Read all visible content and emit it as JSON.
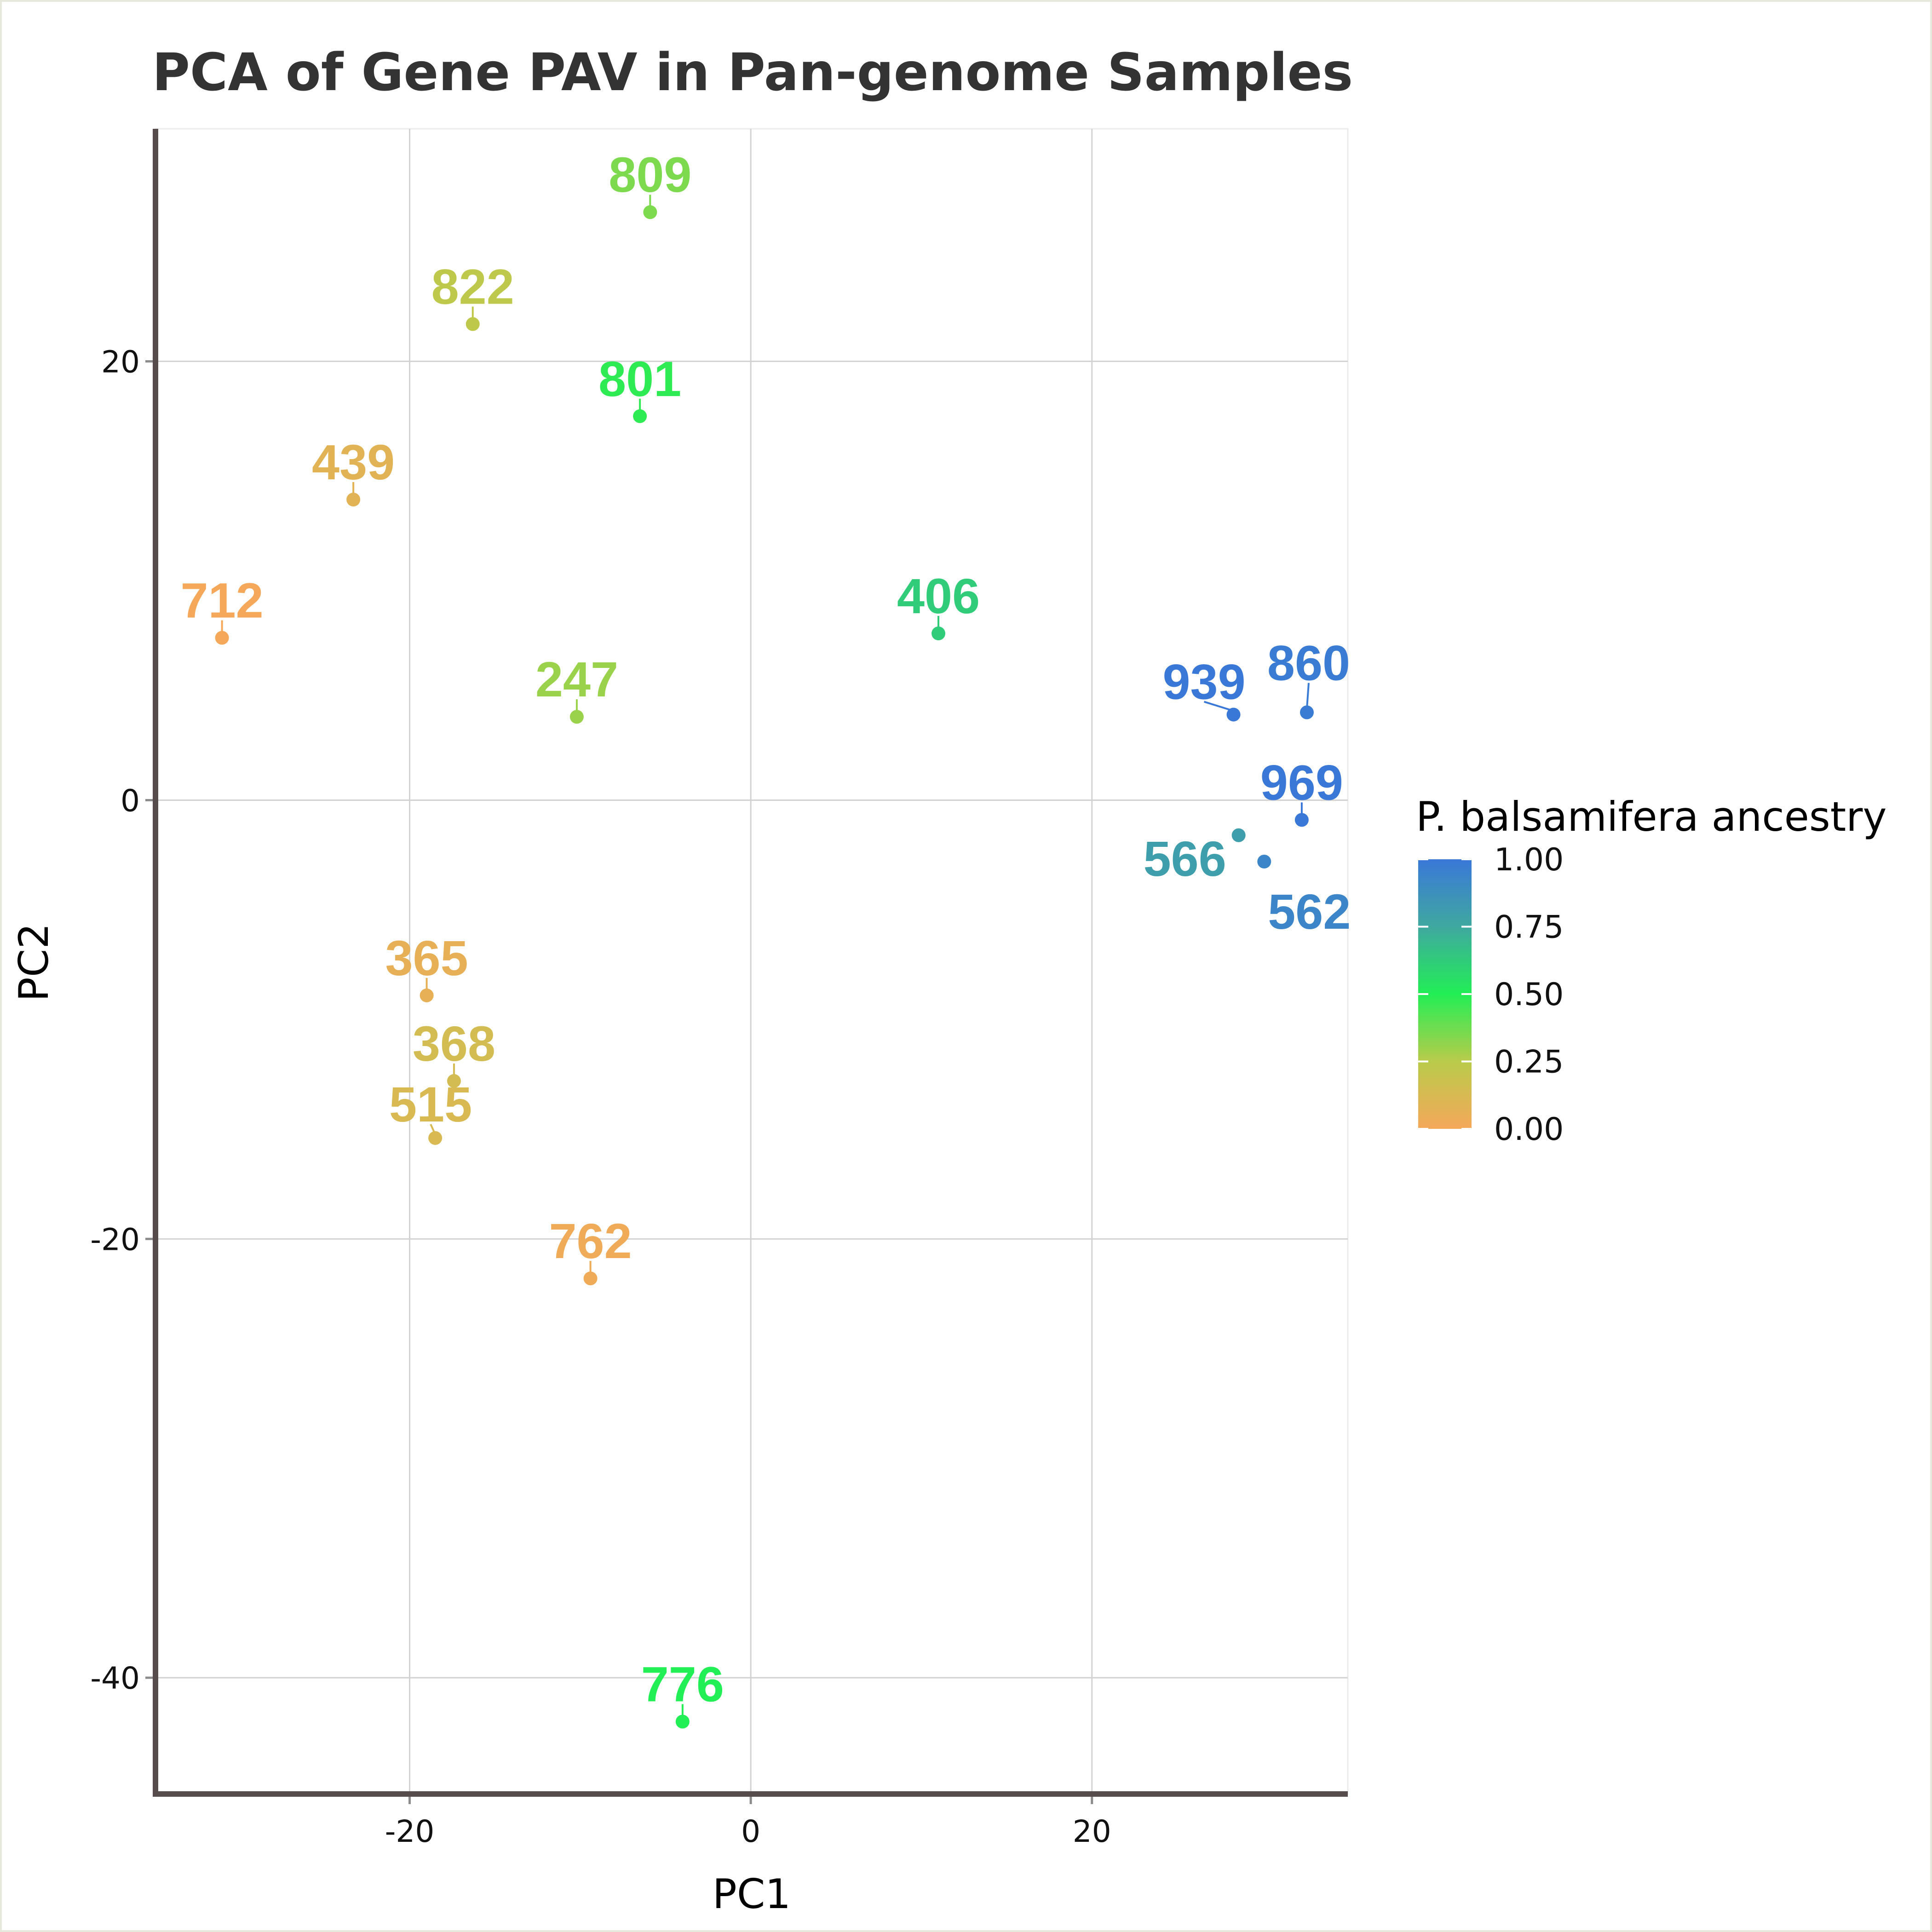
{
  "chart_data": {
    "type": "scatter",
    "title": "PCA of Gene PAV in Pan-genome Samples",
    "xlabel": "PC1",
    "ylabel": "PC2",
    "xlim": [
      -34.9,
      35.0
    ],
    "ylim": [
      -45.3,
      30.6
    ],
    "x_ticks": [
      -20,
      0,
      20
    ],
    "y_ticks": [
      -40,
      -20,
      0,
      20
    ],
    "grid": true,
    "legend": {
      "title": "P. balsamifera ancestry",
      "placement": "right",
      "type": "colorbar",
      "ticks": [
        "1.00",
        "0.75",
        "0.50",
        "0.25",
        "0.00"
      ],
      "tick_values": [
        1.0,
        0.75,
        0.5,
        0.25,
        0.0
      ],
      "gradient": [
        {
          "value": 0.0,
          "color": "#F5A85A"
        },
        {
          "value": 0.25,
          "color": "#B9CB4A"
        },
        {
          "value": 0.5,
          "color": "#22EE55"
        },
        {
          "value": 0.75,
          "color": "#3FA8A0"
        },
        {
          "value": 1.0,
          "color": "#3A78D8"
        }
      ]
    },
    "points": [
      {
        "label": "809",
        "x": -5.9,
        "y": 26.8,
        "ancestry": 0.35
      },
      {
        "label": "822",
        "x": -16.3,
        "y": 21.7,
        "ancestry": 0.23
      },
      {
        "label": "801",
        "x": -6.5,
        "y": 17.5,
        "ancestry": 0.48
      },
      {
        "label": "439",
        "x": -23.3,
        "y": 13.7,
        "ancestry": 0.08
      },
      {
        "label": "712",
        "x": -31.0,
        "y": 7.4,
        "ancestry": 0.0
      },
      {
        "label": "406",
        "x": 11.0,
        "y": 7.6,
        "ancestry": 0.62
      },
      {
        "label": "247",
        "x": -10.2,
        "y": 3.8,
        "ancestry": 0.3
      },
      {
        "label": "939",
        "x": 28.3,
        "y": 3.9,
        "ancestry": 1.0
      },
      {
        "label": "860",
        "x": 32.6,
        "y": 4.0,
        "ancestry": 0.98
      },
      {
        "label": "969",
        "x": 32.3,
        "y": -0.9,
        "ancestry": 1.0
      },
      {
        "label": "566",
        "x": 28.6,
        "y": -1.6,
        "ancestry": 0.8
      },
      {
        "label": "562",
        "x": 30.1,
        "y": -2.8,
        "ancestry": 0.93
      },
      {
        "label": "365",
        "x": -19.0,
        "y": -8.9,
        "ancestry": 0.06
      },
      {
        "label": "368",
        "x": -17.4,
        "y": -12.8,
        "ancestry": 0.14
      },
      {
        "label": "515",
        "x": -18.5,
        "y": -15.4,
        "ancestry": 0.12
      },
      {
        "label": "762",
        "x": -9.4,
        "y": -21.8,
        "ancestry": 0.02
      },
      {
        "label": "776",
        "x": -4.0,
        "y": -42.0,
        "ancestry": 0.5
      }
    ]
  }
}
